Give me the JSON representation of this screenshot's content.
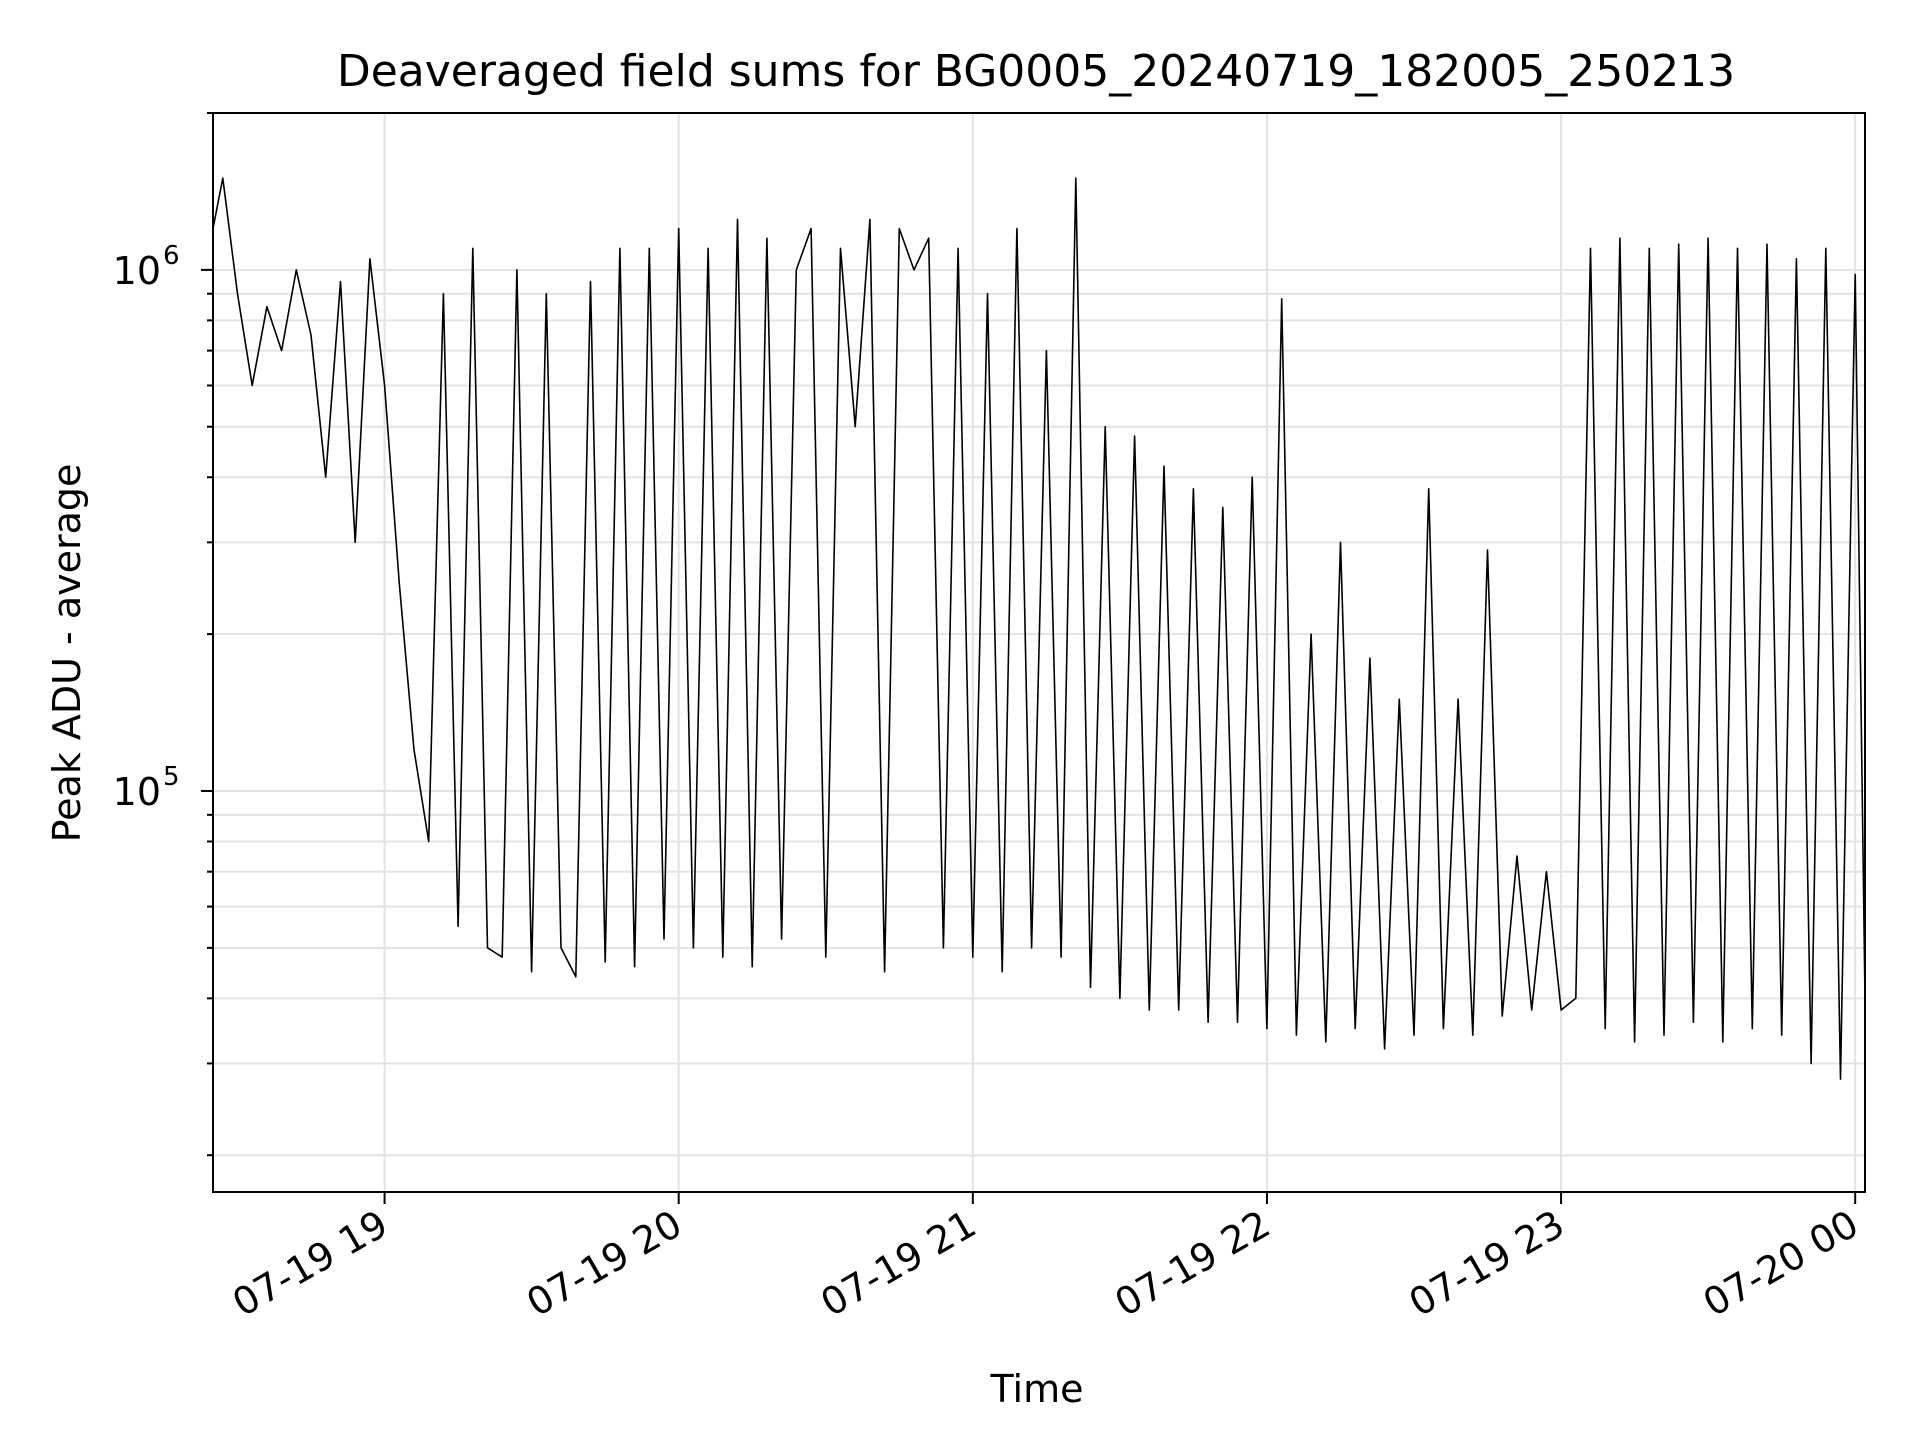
{
  "chart_data": {
    "type": "line",
    "title": "Deaveraged field sums for BG0005_20240719_182005_250213",
    "xlabel": "Time",
    "ylabel": "Peak ADU - average",
    "yscale": "log",
    "ylim": [
      17000,
      2000000
    ],
    "xlim": [
      "2024-07-19 18:25",
      "2024-07-20 00:02"
    ],
    "grid": true,
    "line_color": "#000000",
    "x_ticks": [
      {
        "label": "07-19 19",
        "t": "2024-07-19 19:00"
      },
      {
        "label": "07-19 20",
        "t": "2024-07-19 20:00"
      },
      {
        "label": "07-19 21",
        "t": "2024-07-19 21:00"
      },
      {
        "label": "07-19 22",
        "t": "2024-07-19 22:00"
      },
      {
        "label": "07-19 23",
        "t": "2024-07-19 23:00"
      },
      {
        "label": "07-20 00",
        "t": "2024-07-20 00:00"
      }
    ],
    "y_ticks": [
      {
        "base": "10",
        "exp": "5",
        "value": 100000
      },
      {
        "base": "10",
        "exp": "6",
        "value": 1000000
      }
    ],
    "series": [
      {
        "x": [
          "18:25",
          "18:27",
          "18:30",
          "18:33",
          "18:36",
          "18:39",
          "18:42",
          "18:45",
          "18:48",
          "18:51",
          "18:54",
          "18:57",
          "19:00",
          "19:03",
          "19:06",
          "19:09",
          "19:12",
          "19:15",
          "19:18",
          "19:21",
          "19:24",
          "19:27",
          "19:30",
          "19:33",
          "19:36",
          "19:39",
          "19:42",
          "19:45",
          "19:48",
          "19:51",
          "19:54",
          "19:57",
          "20:00",
          "20:03",
          "20:06",
          "20:09",
          "20:12",
          "20:15",
          "20:18",
          "20:21",
          "20:24",
          "20:27",
          "20:30",
          "20:33",
          "20:36",
          "20:39",
          "20:42",
          "20:45",
          "20:48",
          "20:51",
          "20:54",
          "20:57",
          "21:00",
          "21:03",
          "21:06",
          "21:09",
          "21:12",
          "21:15",
          "21:18",
          "21:21",
          "21:24",
          "21:27",
          "21:30",
          "21:33",
          "21:36",
          "21:39",
          "21:42",
          "21:45",
          "21:48",
          "21:51",
          "21:54",
          "21:57",
          "22:00",
          "22:03",
          "22:06",
          "22:09",
          "22:12",
          "22:15",
          "22:18",
          "22:21",
          "22:24",
          "22:27",
          "22:30",
          "22:33",
          "22:36",
          "22:39",
          "22:42",
          "22:45",
          "22:48",
          "22:51",
          "22:54",
          "22:57",
          "23:00",
          "23:03",
          "23:06",
          "23:09",
          "23:12",
          "23:15",
          "23:18",
          "23:21",
          "23:24",
          "23:27",
          "23:30",
          "23:33",
          "23:36",
          "23:39",
          "23:42",
          "23:45",
          "23:48",
          "23:51",
          "23:54",
          "23:57",
          "00:00",
          "00:02"
        ],
        "y": [
          1200000,
          1500000,
          900000,
          600000,
          850000,
          700000,
          1000000,
          750000,
          400000,
          950000,
          300000,
          1050000,
          600000,
          250000,
          120000,
          80000,
          900000,
          55000,
          1100000,
          50000,
          48000,
          1000000,
          45000,
          900000,
          50000,
          44000,
          950000,
          47000,
          1100000,
          46000,
          1100000,
          52000,
          1200000,
          50000,
          1100000,
          48000,
          1250000,
          46000,
          1150000,
          52000,
          1000000,
          1200000,
          48000,
          1100000,
          500000,
          1250000,
          45000,
          1200000,
          1000000,
          1150000,
          50000,
          1100000,
          48000,
          900000,
          45000,
          1200000,
          50000,
          700000,
          48000,
          1500000,
          42000,
          500000,
          40000,
          480000,
          38000,
          420000,
          38000,
          380000,
          36000,
          350000,
          36000,
          400000,
          35000,
          880000,
          34000,
          200000,
          33000,
          300000,
          35000,
          180000,
          32000,
          150000,
          34000,
          380000,
          35000,
          150000,
          34000,
          290000,
          37000,
          75000,
          38000,
          70000,
          38000,
          40000,
          1100000,
          35000,
          1150000,
          33000,
          1100000,
          34000,
          1120000,
          36000,
          1150000,
          33000,
          1100000,
          35000,
          1120000,
          34000,
          1050000,
          30000,
          1100000,
          28000,
          980000,
          40000
        ]
      }
    ]
  }
}
